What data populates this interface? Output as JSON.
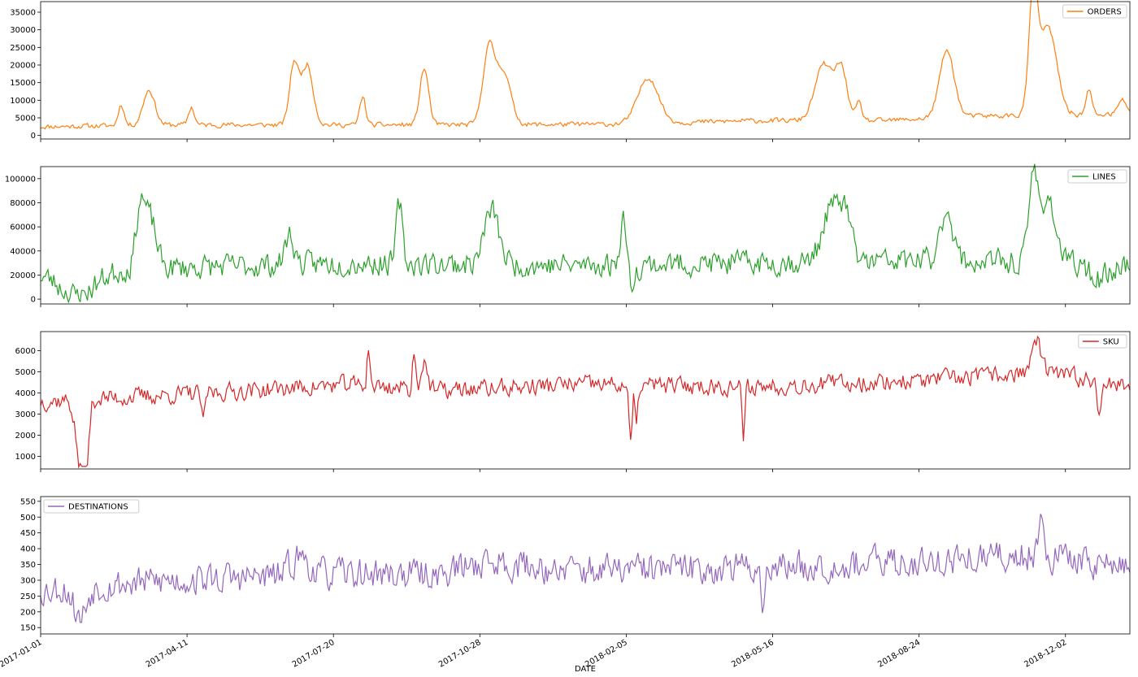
{
  "chart_data": {
    "type": "line",
    "layout": "four vertically stacked subplots sharing x axis",
    "x_axis": {
      "label": "DATE",
      "range": [
        "2017-01-01",
        "2019-01-15"
      ],
      "ticks": [
        "2017-01-01",
        "2017-04-11",
        "2017-07-20",
        "2017-10-28",
        "2018-02-05",
        "2018-05-16",
        "2018-08-24",
        "2018-12-02"
      ],
      "tick_rotation": 30
    },
    "grid": false,
    "panels": [
      {
        "series": "ORDERS",
        "color": "#ff7f0e",
        "legend_position": "top-right",
        "ylim": [
          -1000,
          38000
        ],
        "yticks": [
          0,
          5000,
          10000,
          15000,
          20000,
          25000,
          30000,
          35000
        ],
        "seed": 11,
        "noise": 900,
        "baseline": [
          [
            "2017-01-01",
            2500
          ],
          [
            "2017-04-01",
            3000
          ],
          [
            "2017-10-01",
            3000
          ],
          [
            "2018-02-01",
            3200
          ],
          [
            "2018-05-01",
            4200
          ],
          [
            "2018-08-01",
            4200
          ],
          [
            "2018-10-01",
            5500
          ],
          [
            "2019-01-15",
            6000
          ]
        ],
        "spikes": [
          [
            "2017-02-25",
            6000,
            2
          ],
          [
            "2017-03-16",
            10000,
            4
          ],
          [
            "2017-04-14",
            5000,
            2
          ],
          [
            "2017-06-23",
            17000,
            3
          ],
          [
            "2017-07-02",
            17000,
            4
          ],
          [
            "2017-08-09",
            8000,
            2
          ],
          [
            "2017-09-20",
            16000,
            3
          ],
          [
            "2017-11-03",
            21000,
            4
          ],
          [
            "2017-11-13",
            15000,
            5
          ],
          [
            "2018-02-20",
            13000,
            7
          ],
          [
            "2018-06-20",
            16000,
            6
          ],
          [
            "2018-07-02",
            14000,
            4
          ],
          [
            "2018-07-14",
            5000,
            2
          ],
          [
            "2018-09-12",
            19000,
            5
          ],
          [
            "2018-11-10",
            32000,
            3
          ],
          [
            "2018-11-20",
            25000,
            6
          ],
          [
            "2018-12-18",
            7000,
            2
          ],
          [
            "2019-01-10",
            4000,
            3
          ]
        ],
        "dips": []
      },
      {
        "series": "LINES",
        "color": "#2ca02c",
        "legend_position": "top-right",
        "ylim": [
          -4000,
          110000
        ],
        "yticks": [
          0,
          20000,
          40000,
          60000,
          80000,
          100000
        ],
        "seed": 23,
        "noise": 13000,
        "baseline": [
          [
            "2017-01-01",
            22000
          ],
          [
            "2017-04-01",
            26000
          ],
          [
            "2017-08-01",
            30000
          ],
          [
            "2018-01-01",
            28000
          ],
          [
            "2018-05-01",
            30000
          ],
          [
            "2018-09-01",
            32000
          ],
          [
            "2019-01-15",
            28000
          ]
        ],
        "spikes": [
          [
            "2017-03-10",
            50000,
            3
          ],
          [
            "2017-03-17",
            40000,
            4
          ],
          [
            "2017-06-20",
            25000,
            3
          ],
          [
            "2017-09-03",
            50000,
            2
          ],
          [
            "2017-11-05",
            45000,
            5
          ],
          [
            "2018-02-03",
            45000,
            2
          ],
          [
            "2018-06-25",
            45000,
            6
          ],
          [
            "2018-07-05",
            35000,
            4
          ],
          [
            "2018-09-12",
            45000,
            4
          ],
          [
            "2018-11-10",
            70000,
            3
          ],
          [
            "2018-11-20",
            55000,
            5
          ]
        ],
        "dips": [
          [
            "2017-01-26",
            20000,
            12
          ],
          [
            "2018-02-08",
            15000,
            3
          ],
          [
            "2018-12-25",
            12000,
            6
          ]
        ]
      },
      {
        "series": "SKU",
        "color": "#d62728",
        "legend_position": "top-right",
        "ylim": [
          400,
          6900
        ],
        "yticks": [
          1000,
          2000,
          3000,
          4000,
          5000,
          6000
        ],
        "seed": 37,
        "noise": 550,
        "baseline": [
          [
            "2017-01-01",
            3600
          ],
          [
            "2017-04-01",
            3900
          ],
          [
            "2017-08-01",
            4400
          ],
          [
            "2017-10-01",
            4100
          ],
          [
            "2018-01-01",
            4400
          ],
          [
            "2018-05-01",
            4300
          ],
          [
            "2018-09-01",
            4600
          ],
          [
            "2018-11-15",
            5000
          ],
          [
            "2019-01-15",
            4300
          ]
        ],
        "spikes": [
          [
            "2017-08-13",
            1800,
            1
          ],
          [
            "2017-09-13",
            1800,
            1
          ],
          [
            "2017-09-20",
            1500,
            2
          ],
          [
            "2018-11-12",
            1500,
            3
          ]
        ],
        "dips": [
          [
            "2017-01-28",
            3000,
            3
          ],
          [
            "2017-02-01",
            2500,
            2
          ],
          [
            "2017-04-22",
            1600,
            1
          ],
          [
            "2018-02-08",
            3000,
            1
          ],
          [
            "2018-02-12",
            2000,
            1
          ],
          [
            "2018-04-26",
            2600,
            1
          ],
          [
            "2018-12-25",
            1500,
            1
          ]
        ]
      },
      {
        "series": "DESTINATIONS",
        "color": "#9467bd",
        "legend_position": "top-left",
        "ylim": [
          130,
          565
        ],
        "yticks": [
          150,
          200,
          250,
          300,
          350,
          400,
          450,
          500,
          550
        ],
        "seed": 53,
        "noise": 65,
        "baseline": [
          [
            "2017-01-01",
            270
          ],
          [
            "2017-04-01",
            300
          ],
          [
            "2017-08-01",
            320
          ],
          [
            "2017-10-01",
            320
          ],
          [
            "2017-11-01",
            360
          ],
          [
            "2018-01-01",
            330
          ],
          [
            "2018-05-01",
            340
          ],
          [
            "2018-09-01",
            360
          ],
          [
            "2018-11-15",
            380
          ],
          [
            "2019-01-15",
            340
          ]
        ],
        "spikes": [
          [
            "2017-06-27",
            60,
            6
          ],
          [
            "2018-11-15",
            120,
            2
          ]
        ],
        "dips": [
          [
            "2017-01-28",
            100,
            4
          ],
          [
            "2018-05-09",
            140,
            1
          ],
          [
            "2017-12-20",
            70,
            1
          ]
        ]
      }
    ]
  }
}
